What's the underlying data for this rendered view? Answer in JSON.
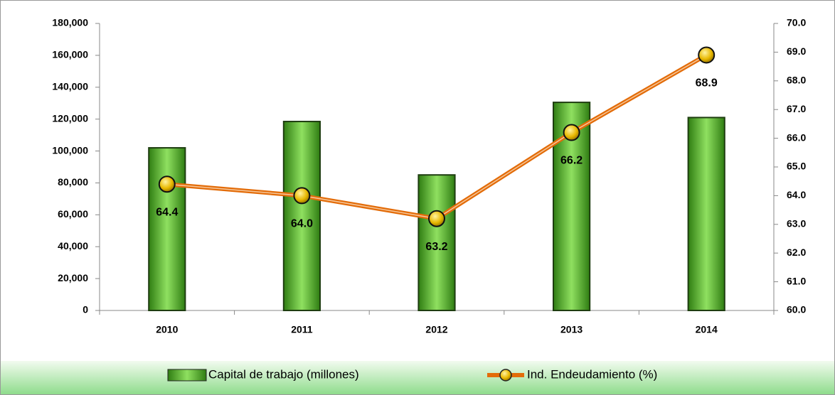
{
  "chart_data": {
    "type": "bar+line",
    "categories": [
      "2010",
      "2011",
      "2012",
      "2013",
      "2014"
    ],
    "series": [
      {
        "name": "Capital de trabajo (millones)",
        "type": "bar",
        "color": "#5fb832",
        "values": [
          102000,
          118500,
          85000,
          130500,
          121000
        ]
      },
      {
        "name": "Ind. Endeudamiento (%)",
        "type": "line",
        "axis": "y2",
        "color": "#e36c09",
        "marker_color": "#e8b800",
        "values": [
          64.4,
          64.0,
          63.2,
          66.2,
          68.9
        ],
        "value_labels": [
          "64.4",
          "64.0",
          "63.2",
          "66.2",
          "68.9"
        ]
      }
    ],
    "ylim": [
      0,
      180000
    ],
    "yticks": [
      {
        "value": 0,
        "label": "0"
      },
      {
        "value": 20000,
        "label": "20,000"
      },
      {
        "value": 40000,
        "label": "40,000"
      },
      {
        "value": 60000,
        "label": "60,000"
      },
      {
        "value": 80000,
        "label": "80,000"
      },
      {
        "value": 100000,
        "label": "100,000"
      },
      {
        "value": 120000,
        "label": "120,000"
      },
      {
        "value": 140000,
        "label": "140,000"
      },
      {
        "value": 160000,
        "label": "160,000"
      },
      {
        "value": 180000,
        "label": "180,000"
      }
    ],
    "y2lim": [
      60,
      70
    ],
    "y2ticks": [
      {
        "value": 60,
        "label": "60.0"
      },
      {
        "value": 61,
        "label": "61.0"
      },
      {
        "value": 62,
        "label": "62.0"
      },
      {
        "value": 63,
        "label": "63.0"
      },
      {
        "value": 64,
        "label": "64.0"
      },
      {
        "value": 65,
        "label": "65.0"
      },
      {
        "value": 66,
        "label": "66.0"
      },
      {
        "value": 67,
        "label": "67.0"
      },
      {
        "value": 68,
        "label": "68.0"
      },
      {
        "value": 69,
        "label": "69.0"
      },
      {
        "value": 70,
        "label": "70.0"
      }
    ],
    "legend": "bottom"
  }
}
